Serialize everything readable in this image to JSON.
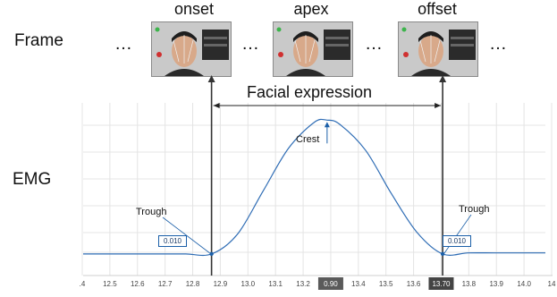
{
  "row_labels": {
    "frame": "Frame",
    "emg": "EMG"
  },
  "frames": [
    {
      "title": "onset"
    },
    {
      "title": "apex"
    },
    {
      "title": "offset"
    }
  ],
  "ellipsis": "…",
  "annotations": {
    "facial_expression": "Facial expression",
    "crest": "Crest",
    "trough_left": "Trough",
    "trough_right": "Trough",
    "value_left": "0.010",
    "value_right": "0.010"
  },
  "chart_data": {
    "type": "line",
    "x": [
      12.3,
      12.4,
      12.5,
      12.6,
      12.7,
      12.8,
      12.9,
      13.0,
      13.1,
      13.2,
      13.25,
      13.3,
      13.4,
      13.5,
      13.6,
      13.7,
      13.8,
      13.9,
      14.0,
      14.1
    ],
    "series": [
      {
        "values": [
          0.01,
          0.01,
          0.01,
          0.01,
          0.01,
          0.01,
          0.028,
          0.068,
          0.108,
          0.132,
          0.134,
          0.13,
          0.106,
          0.066,
          0.03,
          0.01,
          0.011,
          0.011,
          0.011,
          0.011
        ]
      }
    ],
    "xlim": [
      12.3,
      14.1
    ],
    "ylim": [
      -0.01,
      0.15
    ],
    "tick_labels": [
      ".4",
      "12.5",
      "12.6",
      "12.7",
      "12.8",
      "12.9",
      "13.0",
      "13.1",
      "13.2",
      "0.90",
      "13.4",
      "13.5",
      "13.6",
      "13.70",
      "13.8",
      "13.9",
      "14.0",
      "14"
    ],
    "markers": [
      {
        "x": 12.8,
        "label": "12.80"
      },
      {
        "x": 13.7,
        "label": "13.70"
      }
    ],
    "highlight_label": "0.90",
    "grid": true,
    "color": "#2f6db5"
  }
}
